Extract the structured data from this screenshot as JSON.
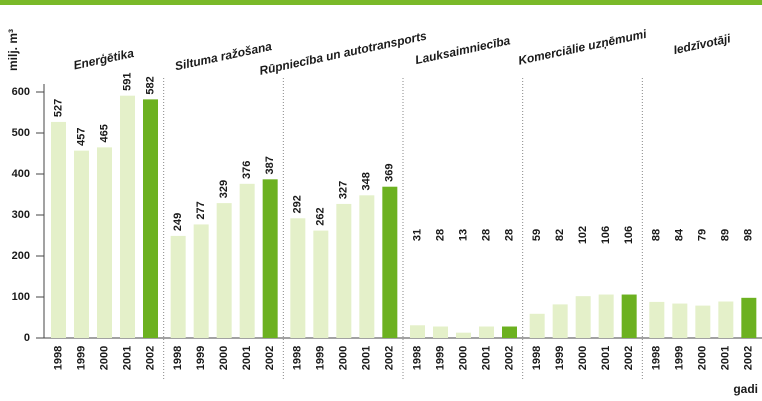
{
  "chart_data": {
    "type": "grouped-bar",
    "ylabel": "milj. m³",
    "xlabel": "gadi",
    "ylim": [
      0,
      600
    ],
    "yticks": [
      0,
      100,
      200,
      300,
      400,
      500,
      600
    ],
    "colors": [
      "#e4f0c9",
      "#e4f0c9",
      "#e4f0c9",
      "#e4f0c9",
      "#6cb120"
    ],
    "groups": [
      {
        "name": "Enerģētika",
        "categories": [
          "1998",
          "1999",
          "2000",
          "2001",
          "2002"
        ],
        "values": [
          527,
          457,
          465,
          591,
          582
        ]
      },
      {
        "name": "Siltuma ražošana",
        "categories": [
          "1998",
          "1999",
          "2000",
          "2001",
          "2002"
        ],
        "values": [
          249,
          277,
          329,
          376,
          387
        ]
      },
      {
        "name": "Rūpniecība un autotransports",
        "categories": [
          "1998",
          "1999",
          "2000",
          "2001",
          "2002"
        ],
        "values": [
          292,
          262,
          327,
          348,
          369
        ]
      },
      {
        "name": "Lauksaimniecība",
        "categories": [
          "1998",
          "1999",
          "2000",
          "2001",
          "2002"
        ],
        "values": [
          31,
          28,
          13,
          28,
          28
        ]
      },
      {
        "name": "Komerciālie uzņēmumi",
        "categories": [
          "1998",
          "1999",
          "2000",
          "2001",
          "2002"
        ],
        "values": [
          59,
          82,
          102,
          106,
          106
        ]
      },
      {
        "name": "Iedzīvotāji",
        "categories": [
          "1998",
          "1999",
          "2000",
          "2001",
          "2002"
        ],
        "values": [
          88,
          84,
          79,
          89,
          98
        ]
      }
    ]
  }
}
